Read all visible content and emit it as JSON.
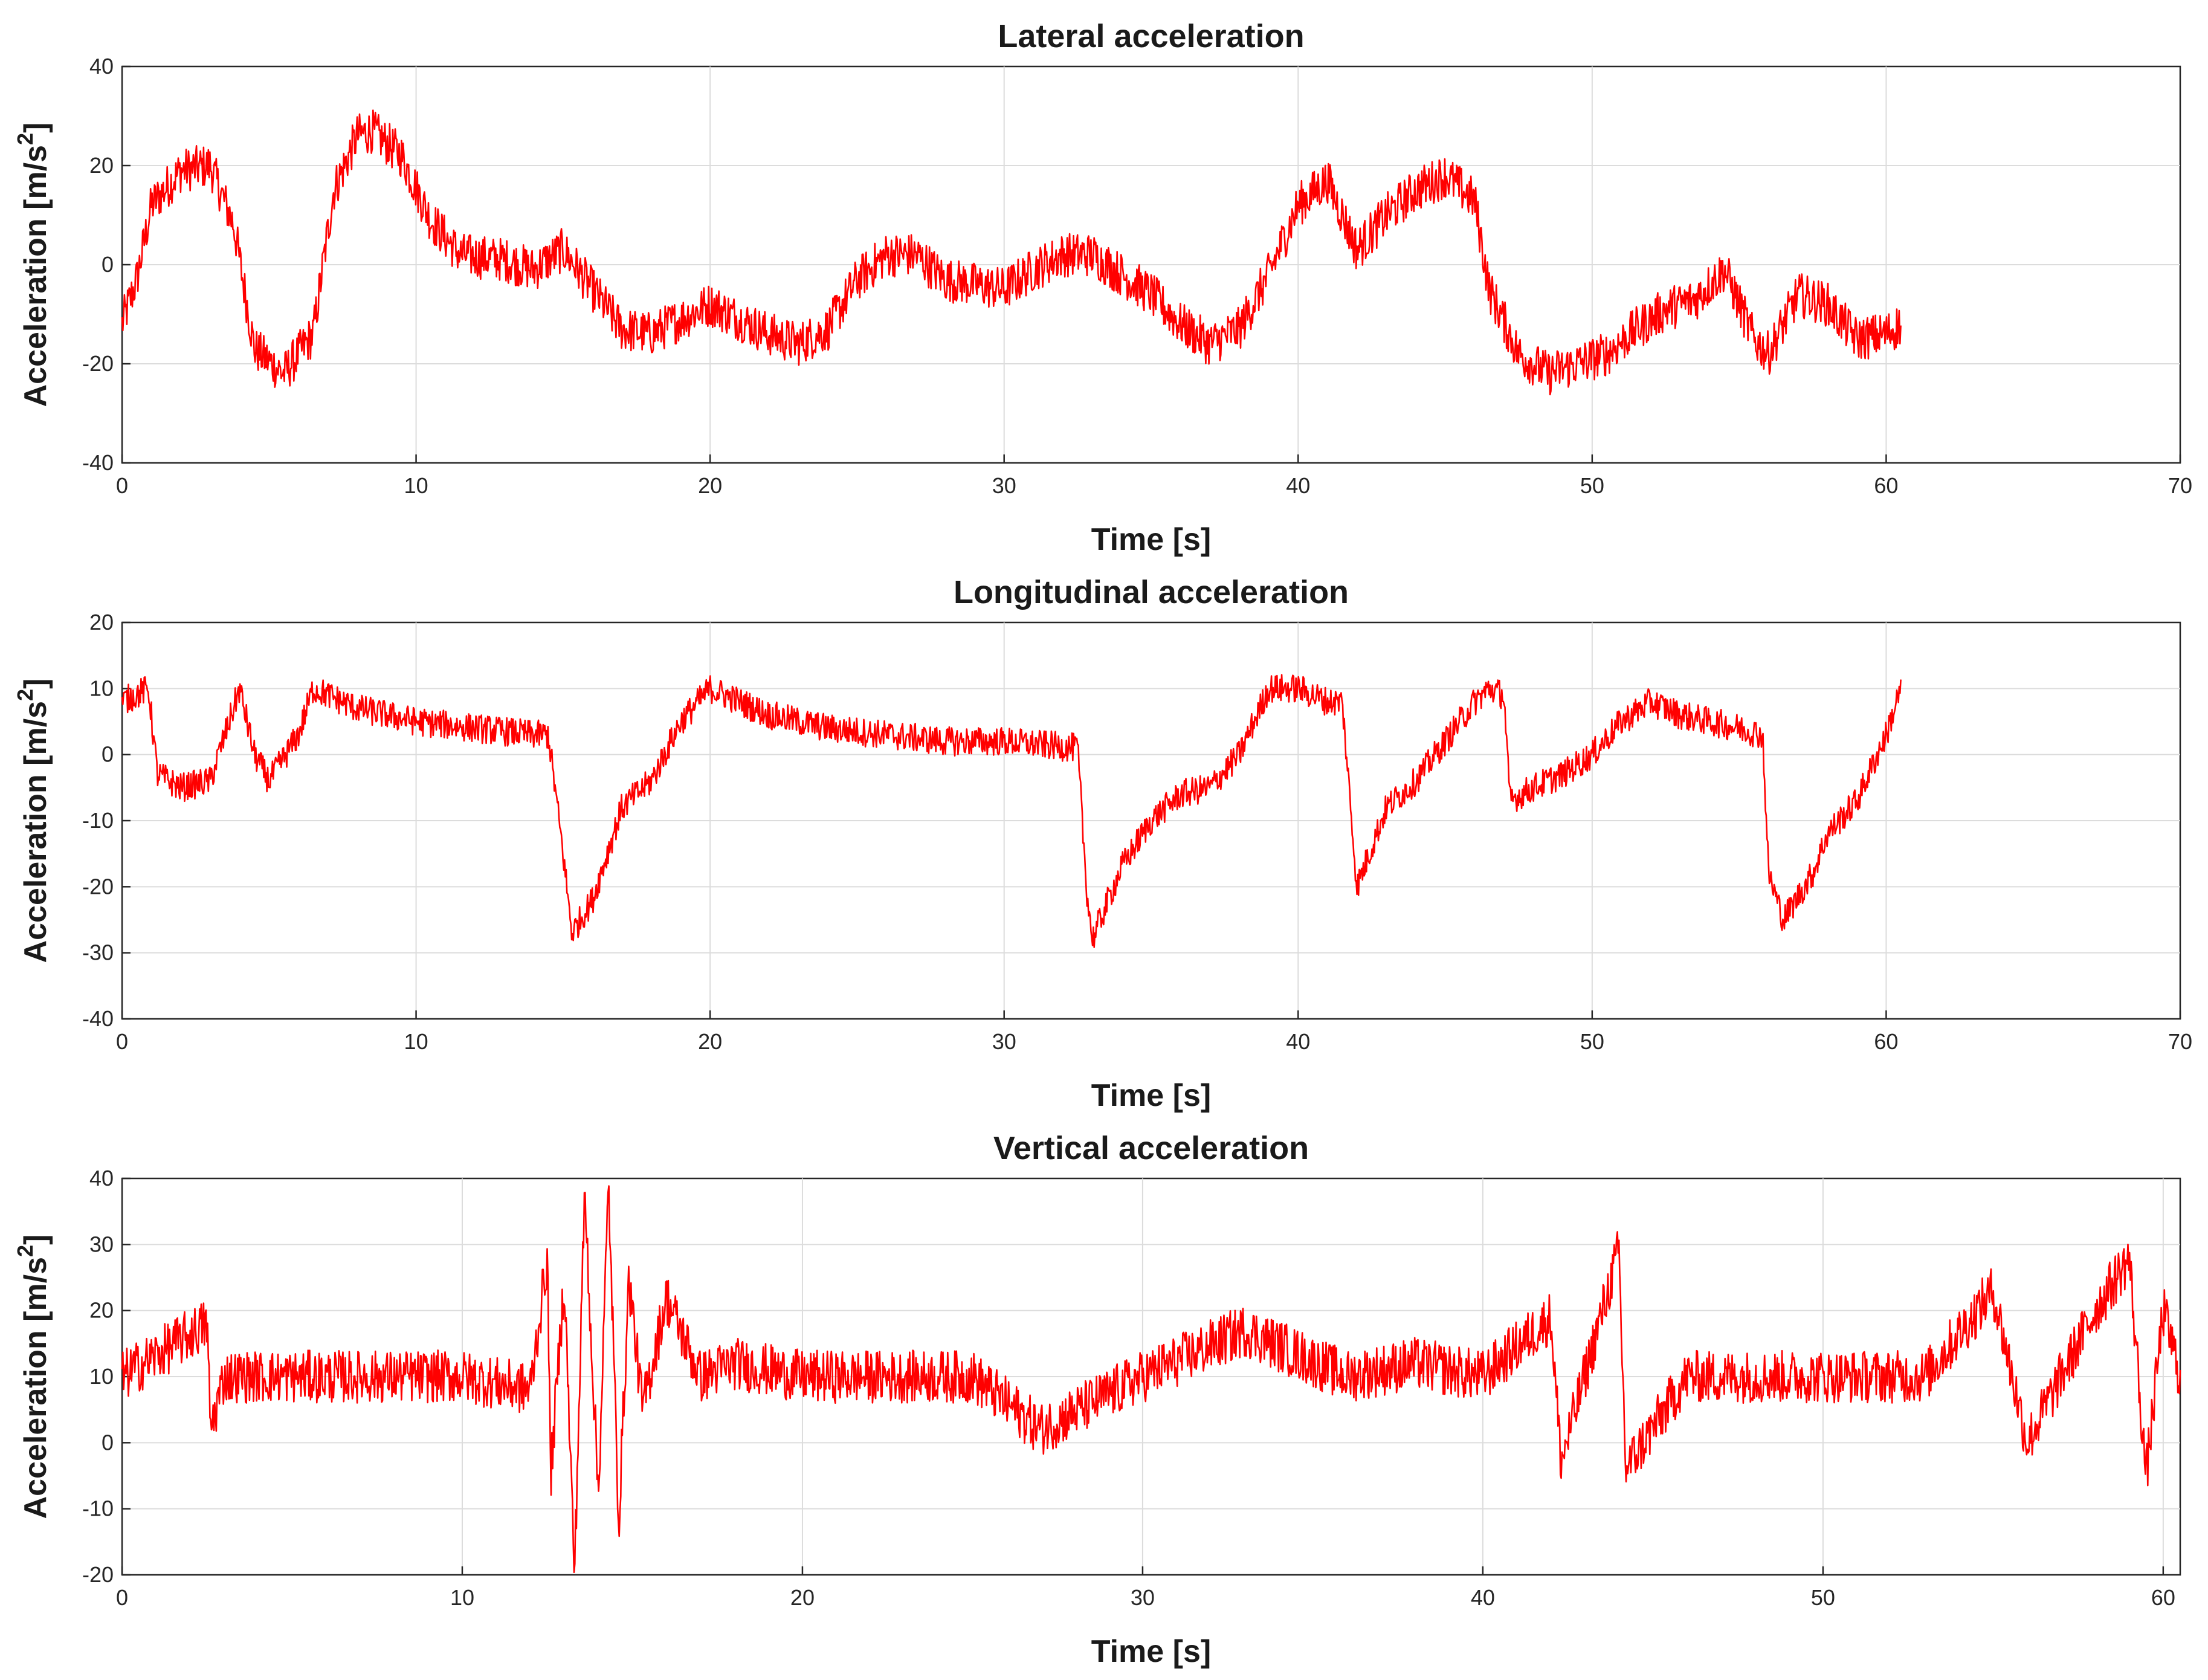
{
  "chart_data": [
    {
      "type": "line",
      "title": "Lateral acceleration",
      "xlabel": "Time [s]",
      "ylabel_base": "Acceleration [m/s",
      "ylabel_exp": "2",
      "ylabel_tail": "]",
      "xlim": [
        0,
        70
      ],
      "ylim": [
        -40,
        40
      ],
      "xticks": [
        0,
        10,
        20,
        30,
        40,
        50,
        60,
        70
      ],
      "yticks": [
        -40,
        -20,
        0,
        20,
        40
      ],
      "grid": true,
      "line_color": "#ff0000",
      "series": [
        {
          "x": [
            0,
            0.5,
            1,
            2,
            3,
            3.8,
            4.5,
            5.5,
            6.5,
            7.2,
            8,
            8.5,
            9.5,
            10.5,
            11.5,
            13,
            14,
            15,
            16,
            17,
            18,
            19,
            20,
            21,
            22,
            23,
            24,
            25,
            26,
            27,
            28,
            29,
            30,
            31,
            32,
            33,
            34,
            35,
            36,
            37,
            38,
            39,
            40,
            41,
            42,
            43,
            44,
            45,
            46,
            46.5,
            47.5,
            48.5,
            49.5,
            50.5,
            51.5,
            52.5,
            53.5,
            54.5,
            55.5,
            56,
            57,
            58,
            59,
            60,
            60.5
          ],
          "y": [
            -12,
            -3,
            12,
            19,
            20,
            8,
            -17,
            -22,
            -14,
            15,
            26,
            27,
            22,
            9,
            2,
            1,
            -1,
            3,
            -5,
            -13,
            -14,
            -11,
            -8,
            -11,
            -14,
            -16,
            -13,
            -3,
            2,
            2,
            -3,
            -4,
            -5,
            -1,
            2,
            2,
            -2,
            -6,
            -12,
            -16,
            -13,
            -2,
            12,
            17,
            3,
            10,
            15,
            18,
            13,
            -5,
            -18,
            -22,
            -20,
            -18,
            -13,
            -9,
            -7,
            -1,
            -15,
            -18,
            -6,
            -8,
            -15,
            -14,
            -12
          ]
        }
      ]
    },
    {
      "type": "line",
      "title": "Longitudinal acceleration",
      "xlabel": "Time [s]",
      "ylabel_base": "Acceleration [m/s",
      "ylabel_exp": "2",
      "ylabel_tail": "]",
      "xlim": [
        0,
        70
      ],
      "ylim": [
        -40,
        20
      ],
      "xticks": [
        0,
        10,
        20,
        30,
        40,
        50,
        60,
        70
      ],
      "yticks": [
        -40,
        -30,
        -20,
        -10,
        0,
        10,
        20
      ],
      "grid": true,
      "line_color": "#ff0000",
      "series": [
        {
          "x": [
            0,
            0.9,
            1.2,
            2,
            3,
            4,
            4.5,
            5,
            6,
            6.5,
            8,
            9,
            10,
            12,
            14,
            14.5,
            15,
            15.3,
            16,
            17,
            18,
            19,
            20,
            21,
            22,
            24,
            26,
            28,
            30,
            32.5,
            32.8,
            33,
            34,
            35,
            36,
            37,
            38,
            39,
            40,
            41,
            41.5,
            42,
            43,
            44,
            45,
            46,
            46.5,
            47,
            47.2,
            48,
            49,
            50,
            51,
            52,
            53,
            55,
            55.8,
            56,
            56.5,
            57.5,
            58,
            59,
            60,
            60.5
          ],
          "y": [
            8,
            10,
            -3,
            -5,
            -4,
            10,
            0,
            -4,
            3,
            10,
            7,
            6,
            5,
            4,
            3,
            3,
            -15,
            -27,
            -22,
            -8,
            -4,
            5,
            10,
            8,
            6,
            4,
            3,
            2,
            2,
            1,
            -20,
            -28,
            -17,
            -10,
            -6,
            -5,
            0,
            10,
            10,
            8,
            8,
            -20,
            -8,
            -4,
            2,
            8,
            10,
            9,
            -7,
            -5,
            -3,
            0,
            5,
            8,
            6,
            4,
            3,
            -18,
            -25,
            -18,
            -12,
            -7,
            3,
            10
          ]
        }
      ]
    },
    {
      "type": "line",
      "title": "Vertical acceleration",
      "xlabel": "Time [s]",
      "ylabel_base": "Acceleration [m/s",
      "ylabel_exp": "2",
      "ylabel_tail": "]",
      "xlim": [
        0,
        60.5
      ],
      "ylim": [
        -20,
        40
      ],
      "xticks": [
        0,
        10,
        20,
        30,
        40,
        50,
        60
      ],
      "yticks": [
        -20,
        -10,
        0,
        10,
        20,
        30,
        40
      ],
      "grid": true,
      "line_color": "#ff0000",
      "series": [
        {
          "x": [
            0,
            2.5,
            2.6,
            3,
            5,
            8,
            10,
            12,
            12.5,
            12.6,
            13,
            13.3,
            13.6,
            14,
            14.3,
            14.6,
            14.9,
            15.3,
            16,
            17,
            18,
            20,
            25,
            27,
            30,
            33,
            36,
            38,
            40,
            42,
            42.3,
            44,
            44.2,
            46,
            50,
            53,
            55,
            56,
            58,
            59,
            59.5,
            60,
            60.5
          ],
          "y": [
            10,
            18,
            2,
            10,
            10,
            10,
            10,
            8,
            28,
            -5,
            25,
            -20,
            38,
            -8,
            39,
            -12,
            25,
            5,
            22,
            10,
            12,
            10,
            10,
            2,
            10,
            17,
            10,
            12,
            10,
            19,
            -3,
            29,
            -4,
            10,
            10,
            10,
            23,
            0,
            20,
            28,
            -5,
            20,
            10
          ]
        }
      ]
    }
  ]
}
